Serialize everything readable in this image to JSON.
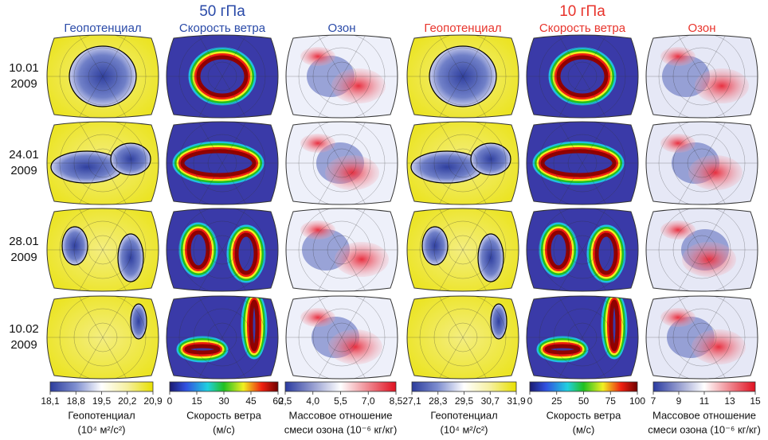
{
  "levels": [
    {
      "title": "50 гПа",
      "color": "#2a4aa8",
      "columns": [
        "Геопотенциал",
        "Скорость ветра",
        "Озон"
      ]
    },
    {
      "title": "10 гПа",
      "color": "#e8342c",
      "columns": [
        "Геопотенциал",
        "Скорость ветра",
        "Озон"
      ]
    }
  ],
  "rows": [
    {
      "date": "10.01",
      "year": "2009"
    },
    {
      "date": "24.01",
      "year": "2009"
    },
    {
      "date": "28.01",
      "year": "2009"
    },
    {
      "date": "10.02",
      "year": "2009"
    }
  ],
  "colorbars": [
    {
      "kind": "geopotential",
      "lim": [
        18.1,
        20.9
      ],
      "ticks": [
        {
          "value": 18.1,
          "label": "18,1"
        },
        {
          "value": 18.8,
          "label": "18,8"
        },
        {
          "value": 19.5,
          "label": "19,5"
        },
        {
          "value": 20.2,
          "label": "20,2"
        },
        {
          "value": 20.9,
          "label": "20,9"
        }
      ],
      "caption": [
        "Геопотенциал",
        "(10⁴ м²/с²)"
      ]
    },
    {
      "kind": "wind",
      "lim": [
        0,
        60
      ],
      "ticks": [
        0,
        15,
        30,
        45,
        60
      ],
      "caption": [
        "Скорость ветра",
        "(м/с)"
      ]
    },
    {
      "kind": "ozone",
      "lim": [
        2.5,
        8.5
      ],
      "ticks": [
        {
          "value": 2.5,
          "label": "2,5"
        },
        {
          "value": 4.0,
          "label": "4,0"
        },
        {
          "value": 5.5,
          "label": "5,5"
        },
        {
          "value": 7.0,
          "label": "7,0"
        },
        {
          "value": 8.5,
          "label": "8,5"
        }
      ],
      "caption": [
        "Массовое отношение",
        "смеси озона (10⁻⁶ кг/кг)"
      ]
    },
    {
      "kind": "geopotential",
      "lim": [
        27.1,
        31.9
      ],
      "ticks": [
        {
          "value": 27.1,
          "label": "27,1"
        },
        {
          "value": 28.3,
          "label": "28,3"
        },
        {
          "value": 29.5,
          "label": "29,5"
        },
        {
          "value": 30.7,
          "label": "30,7"
        },
        {
          "value": 31.9,
          "label": "31,9"
        }
      ],
      "caption": [
        "Геопотенциал",
        "(10⁴ м²/с²)"
      ]
    },
    {
      "kind": "wind",
      "lim": [
        0,
        100
      ],
      "ticks": [
        0,
        25,
        50,
        75,
        100
      ],
      "caption": [
        "Скорость ветра",
        "(м/с)"
      ]
    },
    {
      "kind": "ozone",
      "lim": [
        7,
        15
      ],
      "ticks": [
        7,
        9,
        11,
        13,
        15
      ],
      "caption": [
        "Массовое отношение",
        "смеси озона (10⁻⁶ кг/кг)"
      ]
    }
  ]
}
